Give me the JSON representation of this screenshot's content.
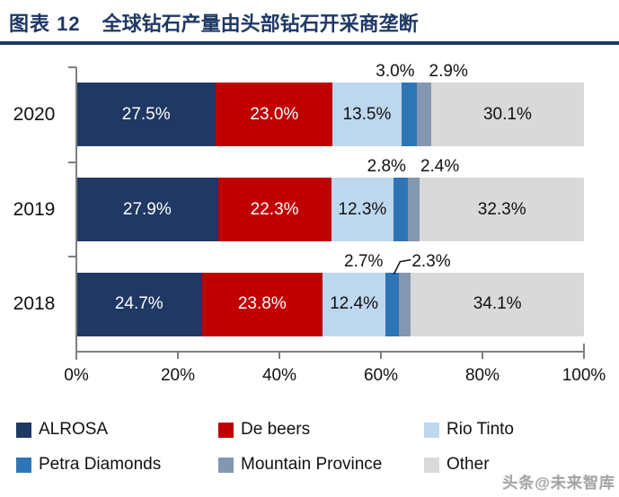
{
  "header": {
    "tag": "图表 12",
    "title": "全球钻石产量由头部钻石开采商垄断",
    "accent_color": "#1F3864"
  },
  "chart_data": {
    "type": "bar",
    "orientation": "horizontal",
    "stacked": true,
    "title": "全球钻石产量由头部钻石开采商垄断",
    "categories": [
      "2020",
      "2019",
      "2018"
    ],
    "series": [
      {
        "name": "ALROSA",
        "color": "#1F3864",
        "label_color": "#FFFFFF",
        "values": [
          27.5,
          27.9,
          24.7
        ]
      },
      {
        "name": "De beers",
        "color": "#C00000",
        "label_color": "#FFFFFF",
        "values": [
          23.0,
          22.3,
          23.8
        ]
      },
      {
        "name": "Rio Tinto",
        "color": "#BDD7EE",
        "label_color": "#111111",
        "values": [
          13.5,
          12.3,
          12.4
        ]
      },
      {
        "name": "Petra Diamonds",
        "color": "#2E75B6",
        "label_color": "#111111",
        "values": [
          3.0,
          2.8,
          2.7
        ]
      },
      {
        "name": "Mountain Province",
        "color": "#8497B0",
        "label_color": "#111111",
        "values": [
          2.9,
          2.4,
          2.3
        ]
      },
      {
        "name": "Other",
        "color": "#D9D9D9",
        "label_color": "#111111",
        "values": [
          30.1,
          32.3,
          34.1
        ]
      }
    ],
    "value_suffix": "%",
    "x_axis": {
      "min": 0,
      "max": 100,
      "ticks": [
        "0%",
        "20%",
        "40%",
        "60%",
        "80%",
        "100%"
      ]
    },
    "axis_color": "#7F7F7F",
    "grid": false,
    "legend_position": "bottom",
    "callout": {
      "category": "2018",
      "series": "Mountain Province"
    }
  },
  "watermark": "头条@未来智库"
}
